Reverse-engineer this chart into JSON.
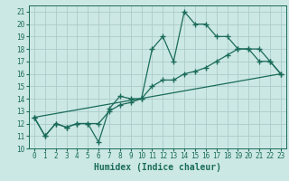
{
  "xlabel": "Humidex (Indice chaleur)",
  "background_color": "#cce8e4",
  "grid_color": "#aaccca",
  "line_color": "#1a6b5a",
  "xlim": [
    -0.5,
    23.5
  ],
  "ylim": [
    10,
    21.5
  ],
  "xticks": [
    0,
    1,
    2,
    3,
    4,
    5,
    6,
    7,
    8,
    9,
    10,
    11,
    12,
    13,
    14,
    15,
    16,
    17,
    18,
    19,
    20,
    21,
    22,
    23
  ],
  "yticks": [
    10,
    11,
    12,
    13,
    14,
    15,
    16,
    17,
    18,
    19,
    20,
    21
  ],
  "line1_x": [
    0,
    1,
    2,
    3,
    4,
    5,
    6,
    7,
    8,
    9,
    10,
    11,
    12,
    13,
    14,
    15,
    16,
    17,
    18,
    19,
    20,
    21,
    22,
    23
  ],
  "line1_y": [
    12.5,
    11.0,
    12.0,
    11.7,
    12.0,
    12.0,
    10.5,
    13.2,
    14.2,
    14.0,
    14.0,
    18.0,
    19.0,
    17.0,
    21.0,
    20.0,
    20.0,
    19.0,
    19.0,
    18.0,
    18.0,
    17.0,
    17.0,
    16.0
  ],
  "line2_x": [
    0,
    1,
    2,
    3,
    4,
    5,
    6,
    7,
    8,
    9,
    10,
    11,
    12,
    13,
    14,
    15,
    16,
    17,
    18,
    19,
    20,
    21,
    22,
    23
  ],
  "line2_y": [
    12.5,
    11.0,
    12.0,
    11.7,
    12.0,
    12.0,
    12.0,
    13.0,
    13.5,
    13.7,
    14.0,
    15.0,
    15.5,
    15.5,
    16.0,
    16.2,
    16.5,
    17.0,
    17.5,
    18.0,
    18.0,
    18.0,
    17.0,
    16.0
  ],
  "line3_x": [
    0,
    23
  ],
  "line3_y": [
    12.5,
    16.0
  ],
  "marker": "+",
  "marker_size": 4,
  "markeredgewidth": 1.0,
  "linewidth": 0.9,
  "tick_labelsize": 5.5,
  "xlabel_fontsize": 7
}
